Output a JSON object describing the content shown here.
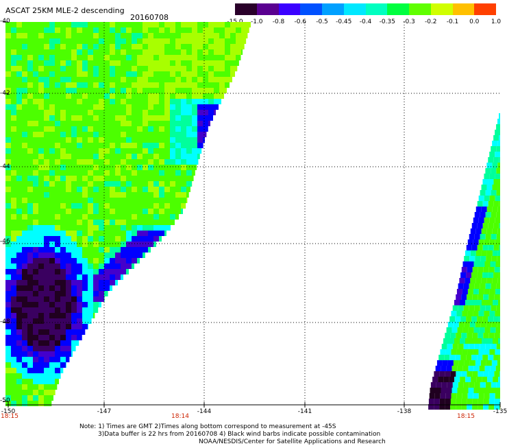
{
  "title": "ASCAT 25KM MLE-2 descending",
  "date": "20160708",
  "colorbar": {
    "labels": [
      "-15.0",
      "-1.0",
      "-0.8",
      "-0.6",
      "-0.5",
      "-0.45",
      "-0.4",
      "-0.35",
      "-0.3",
      "-0.2",
      "-0.1",
      "0.0",
      "1.0"
    ],
    "colors": [
      "#2a002a",
      "#5a0090",
      "#3a00ff",
      "#0050ff",
      "#00a0ff",
      "#00e8ff",
      "#00ffc0",
      "#00ff40",
      "#60ff00",
      "#d0ff00",
      "#ffc000",
      "#ff4000"
    ]
  },
  "map": {
    "lat_labels": [
      "-40",
      "-42",
      "-44",
      "-46",
      "-48",
      "-50"
    ],
    "lon_labels": [
      "-150",
      "-147",
      "-144",
      "-141",
      "-138",
      "-135"
    ],
    "time_labels": [
      "18:15",
      "18:14",
      "18:15"
    ]
  },
  "notes": {
    "line1": "Note: 1) Times are GMT 2)Times along bottom correspond to measurement at -45S",
    "line2": "3)Data buffer is 22 hrs from 20160708 4) Black wind barbs indicate possible contamination",
    "line3": "NOAA/NESDIS/Center for Satellite Applications and Research"
  },
  "swaths": {
    "colors": {
      "green": "#4cff00",
      "lime": "#a8ff00",
      "teal": "#00ff9c",
      "cyan": "#00ffff",
      "blue": "#0000ff",
      "indigo": "#4400cc",
      "purple": "#3a0060",
      "dark": "#200020"
    }
  }
}
